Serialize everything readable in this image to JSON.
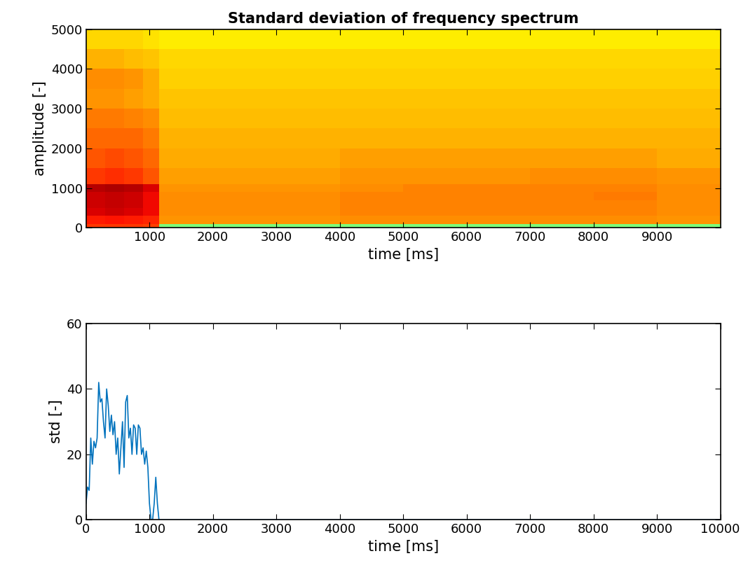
{
  "chart_data": [
    {
      "type": "heatmap",
      "title": "Standard deviation of frequency spectrum",
      "x_label": "time [ms]",
      "y_label": "amplitude [-]",
      "xlim": [
        0,
        10000
      ],
      "ylim": [
        0,
        5000
      ],
      "xticks": [
        1000,
        2000,
        3000,
        4000,
        5000,
        6000,
        7000,
        8000,
        9000
      ],
      "yticks": [
        0,
        1000,
        2000,
        3000,
        4000,
        5000
      ],
      "x_edges": [
        0,
        300,
        600,
        900,
        1150,
        2000,
        3000,
        4000,
        5000,
        6000,
        7000,
        8000,
        9000,
        10000
      ],
      "y_edges": [
        0,
        100,
        300,
        500,
        700,
        900,
        1100,
        1500,
        2000,
        2500,
        3000,
        3500,
        4000,
        4500,
        5000
      ],
      "color_range": [
        0,
        1
      ],
      "cells": [
        [
          0.85,
          0.85,
          0.85,
          0.84,
          0.5,
          0.5,
          0.5,
          0.5,
          0.5,
          0.5,
          0.5,
          0.5,
          0.5
        ],
        [
          0.88,
          0.89,
          0.88,
          0.87,
          0.75,
          0.75,
          0.75,
          0.76,
          0.76,
          0.76,
          0.76,
          0.76,
          0.75
        ],
        [
          0.92,
          0.93,
          0.92,
          0.9,
          0.76,
          0.76,
          0.76,
          0.77,
          0.77,
          0.77,
          0.77,
          0.77,
          0.76
        ],
        [
          0.93,
          0.94,
          0.93,
          0.9,
          0.76,
          0.76,
          0.76,
          0.77,
          0.77,
          0.77,
          0.77,
          0.77,
          0.76
        ],
        [
          0.93,
          0.94,
          0.93,
          0.9,
          0.76,
          0.76,
          0.76,
          0.77,
          0.77,
          0.77,
          0.77,
          0.78,
          0.76
        ],
        [
          0.95,
          0.96,
          0.95,
          0.92,
          0.75,
          0.75,
          0.75,
          0.76,
          0.77,
          0.77,
          0.77,
          0.77,
          0.76
        ],
        [
          0.85,
          0.86,
          0.85,
          0.82,
          0.74,
          0.74,
          0.74,
          0.75,
          0.75,
          0.75,
          0.76,
          0.76,
          0.75
        ],
        [
          0.82,
          0.83,
          0.82,
          0.8,
          0.73,
          0.73,
          0.73,
          0.74,
          0.74,
          0.74,
          0.74,
          0.74,
          0.73
        ],
        [
          0.8,
          0.8,
          0.8,
          0.78,
          0.72,
          0.72,
          0.72,
          0.72,
          0.72,
          0.72,
          0.72,
          0.72,
          0.72
        ],
        [
          0.78,
          0.78,
          0.77,
          0.76,
          0.71,
          0.71,
          0.71,
          0.71,
          0.71,
          0.71,
          0.71,
          0.71,
          0.71
        ],
        [
          0.75,
          0.75,
          0.74,
          0.73,
          0.7,
          0.7,
          0.7,
          0.7,
          0.7,
          0.7,
          0.7,
          0.7,
          0.7
        ],
        [
          0.76,
          0.76,
          0.75,
          0.73,
          0.69,
          0.69,
          0.69,
          0.69,
          0.69,
          0.69,
          0.69,
          0.69,
          0.69
        ],
        [
          0.72,
          0.72,
          0.71,
          0.7,
          0.68,
          0.68,
          0.68,
          0.68,
          0.68,
          0.68,
          0.68,
          0.68,
          0.68
        ],
        [
          0.68,
          0.68,
          0.68,
          0.67,
          0.66,
          0.66,
          0.66,
          0.66,
          0.66,
          0.66,
          0.66,
          0.66,
          0.66
        ]
      ]
    },
    {
      "type": "line",
      "x_label": "time [ms]",
      "y_label": "std [-]",
      "xlim": [
        0,
        10000
      ],
      "ylim": [
        0,
        60
      ],
      "xticks": [
        0,
        1000,
        2000,
        3000,
        4000,
        5000,
        6000,
        7000,
        8000,
        9000,
        10000
      ],
      "yticks": [
        0,
        20,
        40,
        60
      ],
      "color": "#0072bd",
      "x": [
        0,
        25,
        50,
        75,
        100,
        125,
        150,
        175,
        200,
        225,
        250,
        275,
        300,
        325,
        350,
        375,
        400,
        425,
        450,
        475,
        500,
        525,
        550,
        575,
        600,
        625,
        650,
        675,
        700,
        725,
        750,
        775,
        800,
        825,
        850,
        875,
        900,
        925,
        950,
        975,
        1000,
        1025,
        1050,
        1075,
        1100,
        1125,
        1150,
        1200,
        10000
      ],
      "values": [
        5,
        10,
        9,
        25,
        17,
        24,
        22,
        25,
        42,
        36,
        37,
        30,
        25,
        40,
        35,
        27,
        32,
        26,
        30,
        20,
        25,
        14,
        22,
        30,
        16,
        36,
        38,
        25,
        28,
        20,
        29,
        28,
        20,
        29,
        28,
        20,
        22,
        17,
        21,
        16,
        5,
        0,
        0,
        5,
        13,
        5,
        0,
        0,
        0
      ]
    }
  ]
}
